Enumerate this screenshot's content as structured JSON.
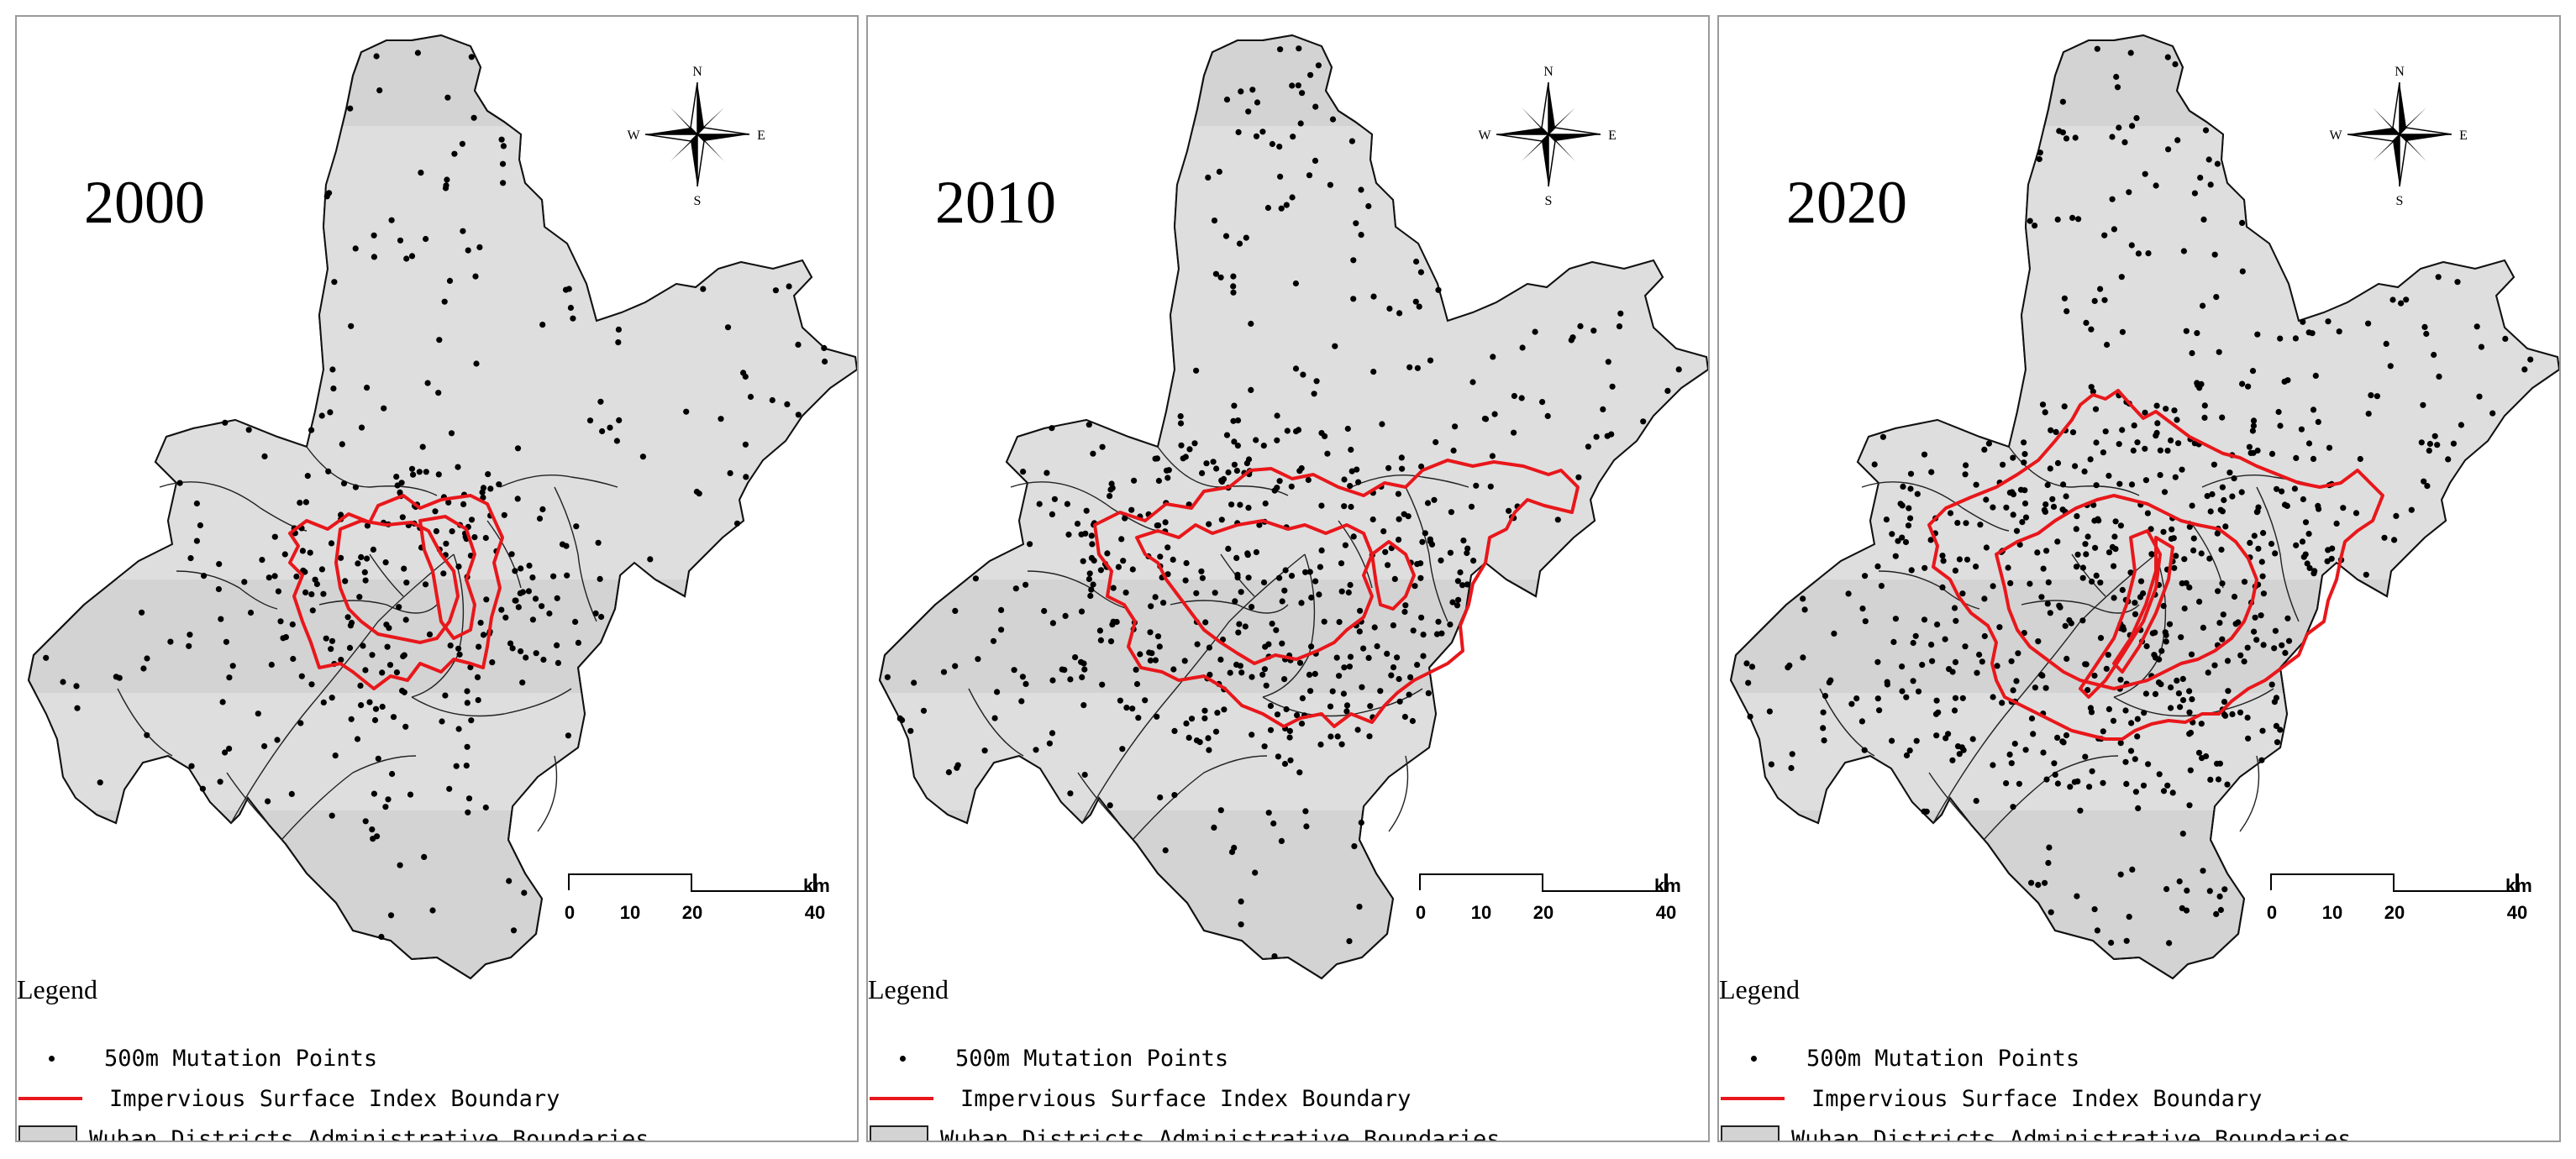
{
  "panels": [
    {
      "year": "2000",
      "mutation_point_density": "low",
      "boundary_shape": "small central core"
    },
    {
      "year": "2010",
      "mutation_point_density": "medium",
      "boundary_shape": "expanded core with eastern lobe"
    },
    {
      "year": "2020",
      "mutation_point_density": "high",
      "boundary_shape": "large expanded urban area"
    }
  ],
  "compass": {
    "n": "N",
    "s": "S",
    "e": "E",
    "w": "W"
  },
  "scale_bar": {
    "ticks": [
      "0",
      "10",
      "20",
      "40"
    ],
    "unit": "km"
  },
  "legend": {
    "title": "Legend",
    "points_label": "500m Mutation Points",
    "boundary_label": "Impervious Surface Index Boundary",
    "districts_label": "Wuhan Districts Administrative Boundaries"
  },
  "colors": {
    "region_fill": "#d3d3d3",
    "band_fill": "#dedede",
    "boundary": "#e8171b",
    "points": "#000000"
  },
  "icons": [
    "compass-rose-icon"
  ]
}
